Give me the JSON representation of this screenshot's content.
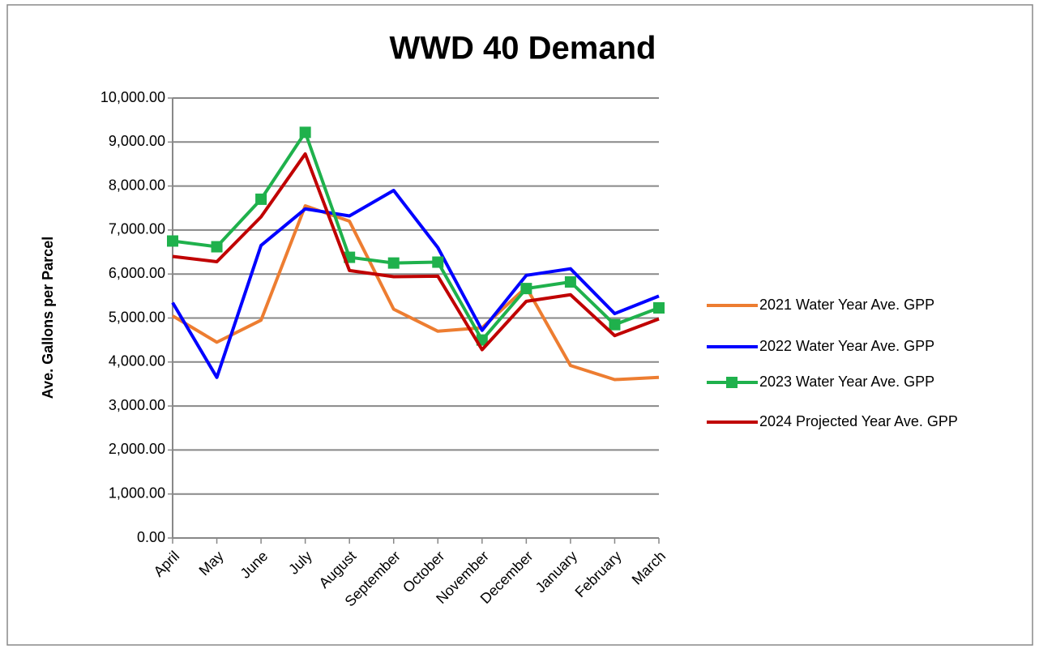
{
  "chart_data": {
    "type": "line",
    "title": "WWD 40 Demand",
    "y_label": "Ave. Gallons per Parcel",
    "categories": [
      "April",
      "May",
      "June",
      "July",
      "August",
      "September",
      "October",
      "November",
      "December",
      "January",
      "February",
      "March"
    ],
    "series": [
      {
        "name": "2021 Water Year Ave. GPP",
        "color": "#ed7d31",
        "marker": false,
        "values": [
          5050,
          4450,
          4950,
          7550,
          7200,
          5200,
          4700,
          4780,
          5700,
          3920,
          3600,
          3650
        ]
      },
      {
        "name": "2022 Water Year Ave. GPP",
        "color": "#0000ff",
        "marker": false,
        "values": [
          5350,
          3650,
          6650,
          7480,
          7320,
          7900,
          6600,
          4720,
          5970,
          6120,
          5100,
          5500
        ]
      },
      {
        "name": "2023 Water Year Ave. GPP",
        "color": "#1fb14c",
        "marker": true,
        "values": [
          6750,
          6620,
          7700,
          9220,
          6380,
          6250,
          6270,
          4500,
          5670,
          5820,
          4850,
          5230
        ]
      },
      {
        "name": "2024 Projected Year Ave. GPP",
        "color": "#c00000",
        "marker": false,
        "values": [
          6400,
          6280,
          7300,
          8730,
          6080,
          5940,
          5950,
          4280,
          5380,
          5530,
          4600,
          4980
        ]
      }
    ],
    "ylim": [
      0,
      10000
    ],
    "yticks": [
      {
        "value": 0,
        "label": "0.00"
      },
      {
        "value": 1000,
        "label": "1,000.00"
      },
      {
        "value": 2000,
        "label": "2,000.00"
      },
      {
        "value": 3000,
        "label": "3,000.00"
      },
      {
        "value": 4000,
        "label": "4,000.00"
      },
      {
        "value": 5000,
        "label": "5,000.00"
      },
      {
        "value": 6000,
        "label": "6,000.00"
      },
      {
        "value": 7000,
        "label": "7,000.00"
      },
      {
        "value": 8000,
        "label": "8,000.00"
      },
      {
        "value": 9000,
        "label": "9,000.00"
      },
      {
        "value": 10000,
        "label": "10,000.00"
      }
    ],
    "grid": true,
    "legend": "right"
  }
}
